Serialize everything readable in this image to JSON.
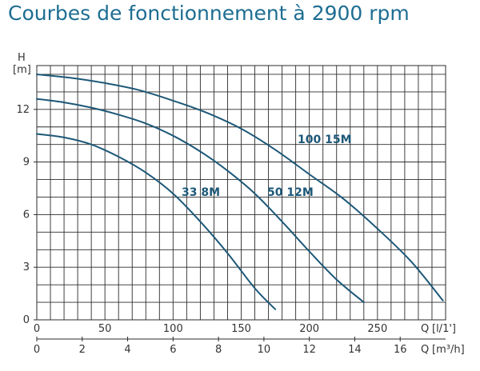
{
  "chart_data": {
    "type": "line",
    "title": "Courbes de fonctionnement à 2900 rpm",
    "y_axis": {
      "symbol": "H",
      "unit": "[m]",
      "ticks": [
        "0",
        "3",
        "6",
        "9",
        "12"
      ],
      "range": [
        0,
        14.5
      ],
      "grid_step": 1
    },
    "x_axis_lpm": {
      "symbol": "Q",
      "unit": "[l/1']",
      "ticks": [
        "0",
        "50",
        "100",
        "150",
        "200",
        "250"
      ],
      "range": [
        0,
        300
      ],
      "grid_step": 10
    },
    "x_axis_m3h": {
      "symbol": "Q",
      "unit": "[m³/h]",
      "ticks": [
        "0",
        "2",
        "4",
        "6",
        "8",
        "10",
        "12",
        "14",
        "16"
      ],
      "range": [
        0,
        18
      ]
    },
    "grid": true,
    "line_color": "#1d5878",
    "title_color": "#1d6d92",
    "series": [
      {
        "name": "33 8M",
        "x": [
          0,
          20,
          40,
          60,
          80,
          100,
          120,
          140,
          160,
          175
        ],
        "y": [
          10.6,
          10.4,
          10.0,
          9.3,
          8.4,
          7.2,
          5.6,
          3.8,
          1.8,
          0.6
        ]
      },
      {
        "name": "50 12M",
        "x": [
          0,
          20,
          40,
          60,
          80,
          100,
          120,
          140,
          160,
          180,
          200,
          220,
          240
        ],
        "y": [
          12.6,
          12.4,
          12.1,
          11.7,
          11.2,
          10.5,
          9.6,
          8.5,
          7.2,
          5.6,
          3.9,
          2.3,
          1.0
        ]
      },
      {
        "name": "100 15M",
        "x": [
          0,
          25,
          50,
          75,
          100,
          125,
          150,
          175,
          200,
          225,
          250,
          275,
          298
        ],
        "y": [
          14.0,
          13.8,
          13.5,
          13.1,
          12.5,
          11.8,
          10.9,
          9.7,
          8.3,
          6.9,
          5.2,
          3.3,
          1.1
        ]
      }
    ]
  }
}
